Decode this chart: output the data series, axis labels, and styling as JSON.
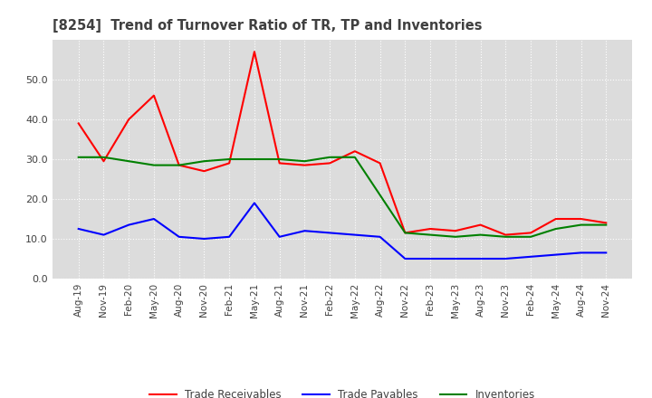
{
  "title": "[8254]  Trend of Turnover Ratio of TR, TP and Inventories",
  "x_labels": [
    "Aug-19",
    "Nov-19",
    "Feb-20",
    "May-20",
    "Aug-20",
    "Nov-20",
    "Feb-21",
    "May-21",
    "Aug-21",
    "Nov-21",
    "Feb-22",
    "May-22",
    "Aug-22",
    "Nov-22",
    "Feb-23",
    "May-23",
    "Aug-23",
    "Nov-23",
    "Feb-24",
    "May-24",
    "Aug-24",
    "Nov-24"
  ],
  "trade_receivables": [
    39.0,
    29.5,
    40.0,
    46.0,
    28.5,
    27.0,
    29.0,
    57.0,
    29.0,
    28.5,
    29.0,
    32.0,
    29.0,
    11.5,
    12.5,
    12.0,
    13.5,
    11.0,
    11.5,
    15.0,
    15.0,
    14.0
  ],
  "trade_payables": [
    12.5,
    11.0,
    13.5,
    15.0,
    10.5,
    10.0,
    10.5,
    19.0,
    10.5,
    12.0,
    11.5,
    11.0,
    10.5,
    5.0,
    5.0,
    5.0,
    5.0,
    5.0,
    5.5,
    6.0,
    6.5,
    6.5
  ],
  "inventories": [
    30.5,
    30.5,
    29.5,
    28.5,
    28.5,
    29.5,
    30.0,
    30.0,
    30.0,
    29.5,
    30.5,
    30.5,
    21.0,
    11.5,
    11.0,
    10.5,
    11.0,
    10.5,
    10.5,
    12.5,
    13.5,
    13.5
  ],
  "color_tr": "#FF0000",
  "color_tp": "#0000FF",
  "color_inv": "#008000",
  "ylim": [
    0,
    60
  ],
  "yticks": [
    0.0,
    10.0,
    20.0,
    30.0,
    40.0,
    50.0
  ],
  "legend_labels": [
    "Trade Receivables",
    "Trade Payables",
    "Inventories"
  ],
  "background_color": "#FFFFFF",
  "plot_bg_color": "#DCDCDC",
  "grid_color": "#FFFFFF",
  "title_color": "#404040",
  "tick_color": "#404040"
}
